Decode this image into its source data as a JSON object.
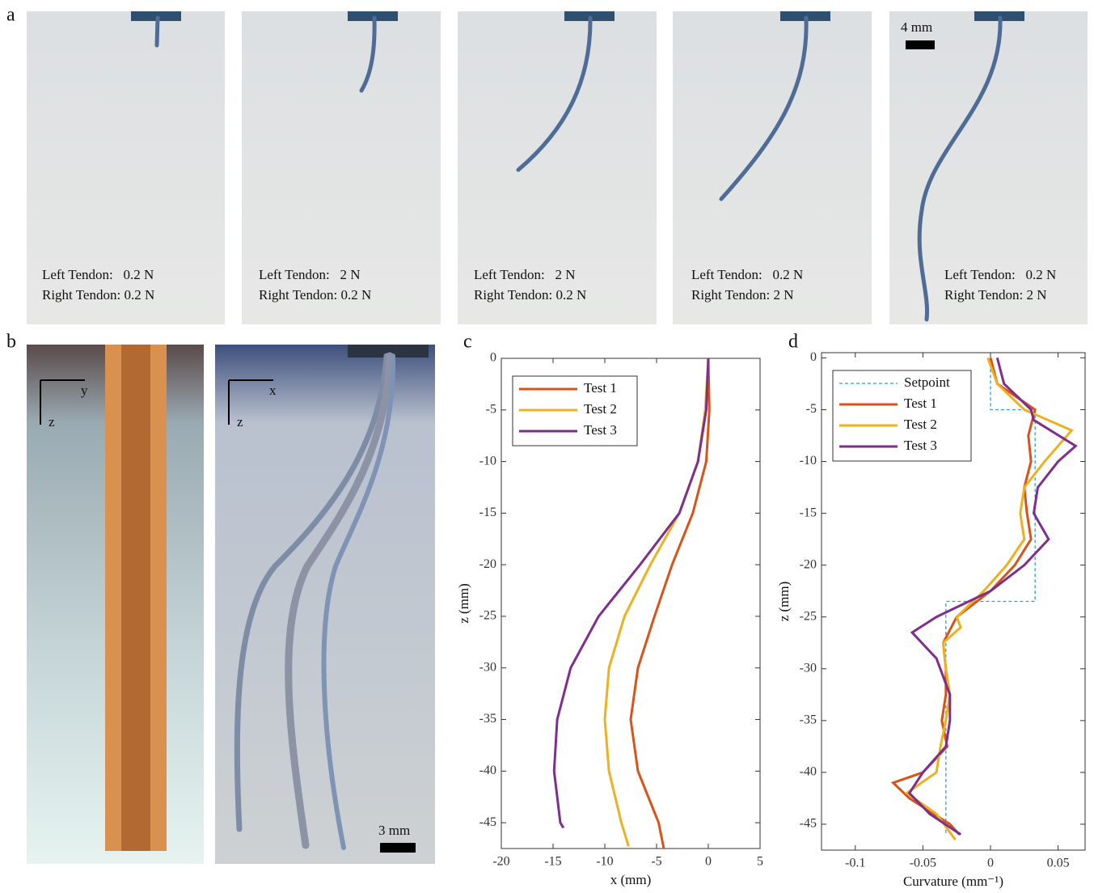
{
  "figure": {
    "panel_a": {
      "letter": "a",
      "scale": "4 mm",
      "images": [
        {
          "left": "Left Tendon:   0.2 N",
          "right": "Right Tendon: 0.2 N"
        },
        {
          "left": "Left Tendon:   2 N",
          "right": "Right Tendon: 0.2 N"
        },
        {
          "left": "Left Tendon:   2 N",
          "right": "Right Tendon: 0.2 N"
        },
        {
          "left": "Left Tendon:   0.2 N",
          "right": "Right Tendon: 2 N"
        },
        {
          "left": "Left Tendon:   0.2 N",
          "right": "Right Tendon: 2 N"
        }
      ]
    },
    "panel_b": {
      "letter": "b",
      "left_axes": [
        "y",
        "z"
      ],
      "right_axes": [
        "x",
        "z"
      ],
      "scale": "3 mm"
    }
  },
  "chart_data": [
    {
      "type": "line",
      "panel_label": "c",
      "xlabel": "x (mm)",
      "ylabel": "z (mm)",
      "xlim": [
        -20,
        5
      ],
      "ylim": [
        -47.5,
        0
      ],
      "xticks": [
        -20,
        -15,
        -10,
        -5,
        0,
        5
      ],
      "yticks": [
        0,
        -5,
        -10,
        -15,
        -20,
        -25,
        -30,
        -35,
        -40,
        -45
      ],
      "grid": false,
      "legend": "upper-left",
      "series": [
        {
          "name": "Test 1",
          "color": "#d95319",
          "x": [
            0,
            0.1,
            -0.2,
            -1.5,
            -3.5,
            -5.2,
            -6.8,
            -7.5,
            -6.8,
            -4.8,
            -4.3
          ],
          "values": [
            0,
            -5,
            -10,
            -15,
            -20,
            -25,
            -30,
            -35,
            -40,
            -45,
            -47.5
          ]
        },
        {
          "name": "Test 2",
          "color": "#edb120",
          "x": [
            0,
            -0.3,
            -1.0,
            -2.8,
            -5.6,
            -8.1,
            -9.6,
            -10.0,
            -9.6,
            -8.4,
            -7.7
          ],
          "values": [
            0,
            -5,
            -10,
            -15,
            -20,
            -25,
            -30,
            -35,
            -40,
            -45,
            -47.3
          ]
        },
        {
          "name": "Test 3",
          "color": "#7e2f8e",
          "x": [
            0,
            -0.2,
            -1.0,
            -2.8,
            -6.6,
            -10.6,
            -13.3,
            -14.6,
            -14.9,
            -14.3,
            -14.0
          ],
          "values": [
            0,
            -5,
            -10,
            -15,
            -20,
            -25,
            -30,
            -35,
            -40,
            -45,
            -45.5
          ]
        }
      ]
    },
    {
      "type": "line",
      "panel_label": "d",
      "xlabel": "Curvature (mm⁻¹)",
      "ylabel": "z (mm)",
      "xlim": [
        -0.125,
        0.07
      ],
      "ylim": [
        -47.5,
        0.5
      ],
      "xticks": [
        -0.1,
        -0.05,
        0,
        0.05
      ],
      "yticks": [
        0,
        -5,
        -10,
        -15,
        -20,
        -25,
        -30,
        -35,
        -40,
        -45
      ],
      "grid": false,
      "legend": "upper-left",
      "series": [
        {
          "name": "Setpoint",
          "color": "#2b9fd9",
          "linestyle": "dashed",
          "x": [
            0,
            0,
            0.033,
            0.033,
            -0.033,
            -0.033
          ],
          "values": [
            0,
            -5,
            -5,
            -23.5,
            -23.5,
            -46
          ]
        },
        {
          "name": "Test 1",
          "color": "#d95319",
          "x": [
            0,
            0.005,
            0.033,
            0.028,
            0.03,
            0.025,
            0.027,
            0.03,
            0.018,
            0,
            -0.025,
            -0.035,
            -0.033,
            -0.033,
            -0.036,
            -0.032,
            -0.05,
            -0.072,
            -0.06,
            -0.03,
            -0.023
          ],
          "values": [
            0,
            -2.5,
            -5,
            -7.5,
            -10,
            -12.5,
            -15,
            -17.5,
            -20,
            -22.5,
            -25,
            -27.5,
            -30,
            -32.5,
            -35,
            -37.5,
            -40,
            -41,
            -42.5,
            -45,
            -46
          ]
        },
        {
          "name": "Test 2",
          "color": "#edb120",
          "x": [
            -0.002,
            0.005,
            0.025,
            0.06,
            0.04,
            0.025,
            0.022,
            0.025,
            0.012,
            -0.005,
            -0.025,
            -0.022,
            -0.035,
            -0.033,
            -0.03,
            -0.033,
            -0.037,
            -0.04,
            -0.062,
            -0.04,
            -0.026
          ],
          "values": [
            0,
            -2.5,
            -5,
            -7,
            -10,
            -12.5,
            -15,
            -17.5,
            -20,
            -22.5,
            -25,
            -26,
            -27.5,
            -30,
            -32.5,
            -35,
            -37.5,
            -40,
            -42,
            -44,
            -46.5
          ]
        },
        {
          "name": "Test 3",
          "color": "#7e2f8e",
          "x": [
            0.005,
            0.01,
            0.03,
            0.032,
            0.063,
            0.05,
            0.035,
            0.032,
            0.043,
            0.025,
            0,
            -0.04,
            -0.058,
            -0.04,
            -0.03,
            -0.03,
            -0.033,
            -0.05,
            -0.06,
            -0.045,
            -0.022
          ],
          "values": [
            0,
            -2.5,
            -5,
            -6,
            -8.5,
            -10,
            -12.5,
            -15,
            -17.5,
            -20,
            -22.5,
            -25,
            -26.5,
            -29,
            -32.5,
            -35,
            -37.5,
            -40,
            -42,
            -44,
            -46
          ]
        }
      ]
    }
  ]
}
